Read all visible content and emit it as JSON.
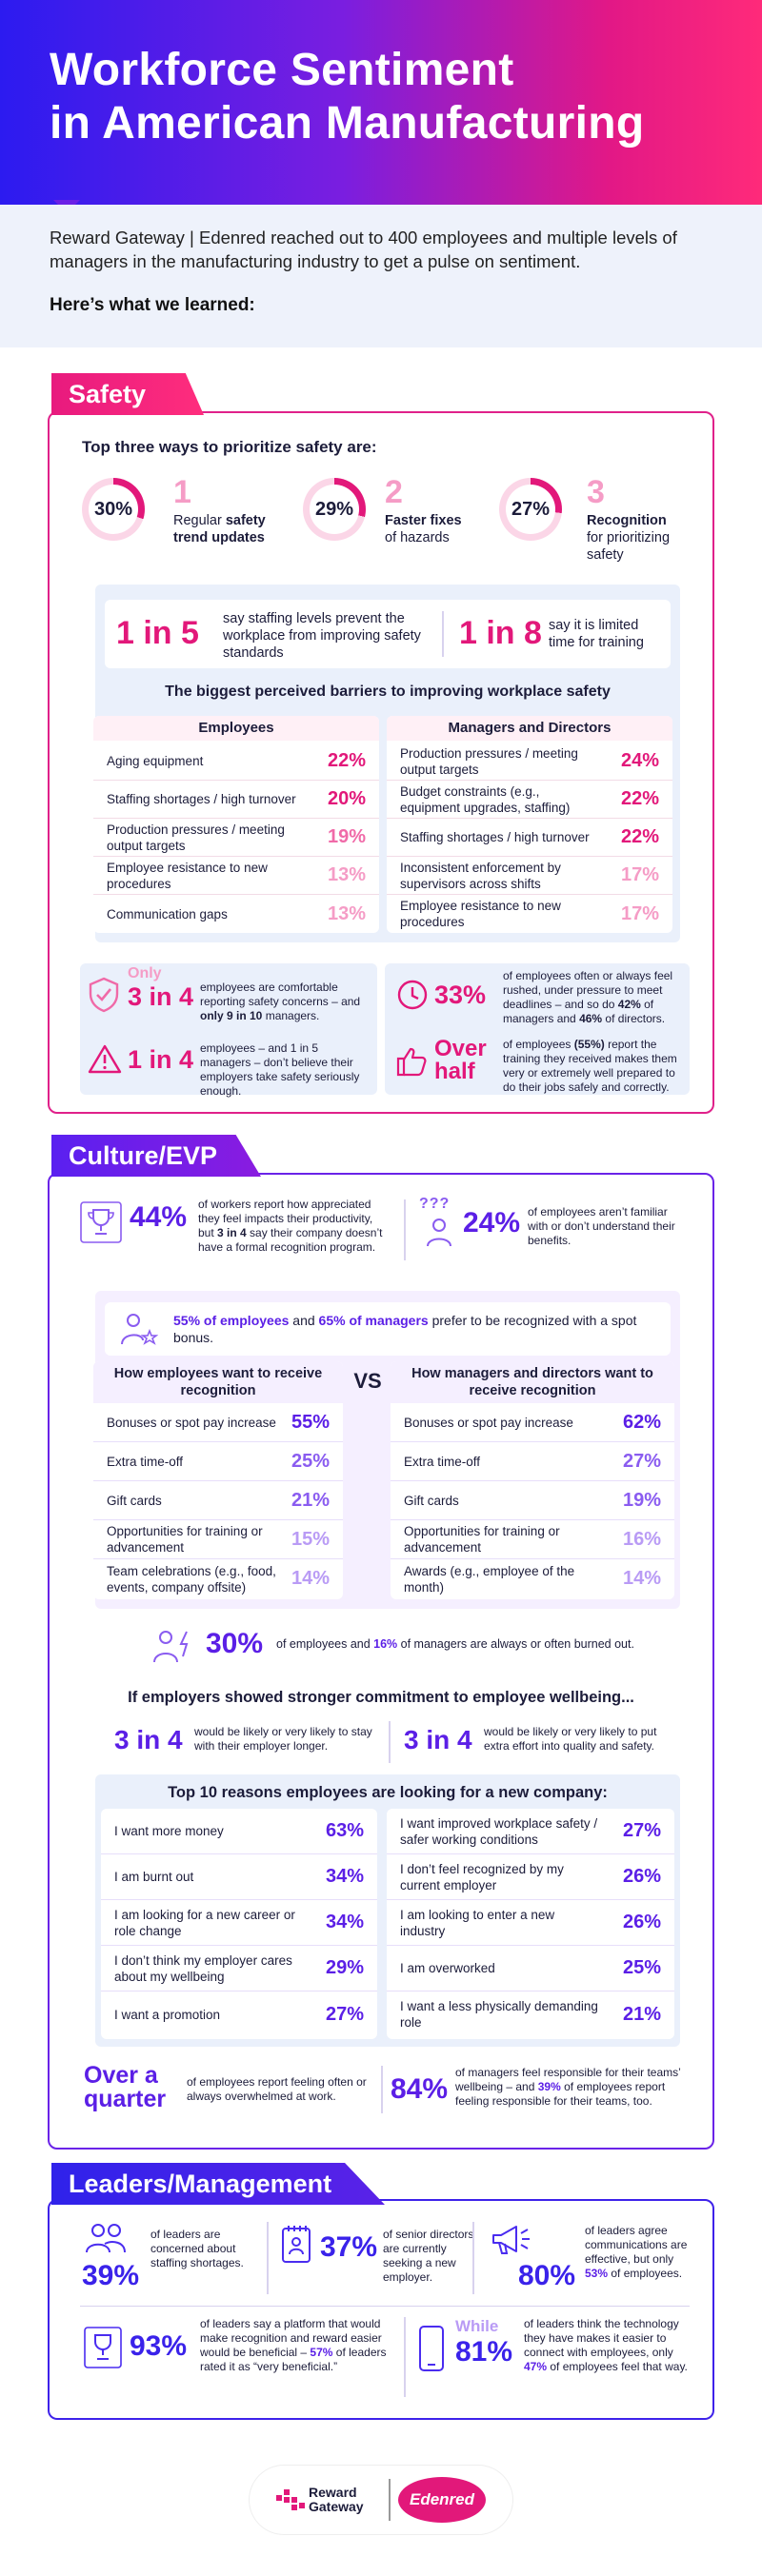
{
  "header": {
    "title_line1": "Workforce Sentiment",
    "title_line2": "in American Manufacturing"
  },
  "intro": {
    "text": "Reward Gateway | Edenred reached out to 400 employees and multiple levels of managers in the manufacturing industry to get a pulse on sentiment.",
    "lead": "Here’s what we learned:"
  },
  "safety": {
    "tag": "Safety",
    "top_heading": "Top three ways to prioritize safety are:",
    "top_ways": [
      {
        "pct": "30%",
        "num": "1",
        "line1": "Regular",
        "bold1": "safety",
        "line2": "trend updates",
        "fraction": 0.3
      },
      {
        "pct": "29%",
        "num": "2",
        "line1": "",
        "bold1": "Faster fixes",
        "line2": "of hazards",
        "fraction": 0.29
      },
      {
        "pct": "27%",
        "num": "3",
        "line1": "",
        "bold1": "Recognition",
        "line2": "for prioritizing safety",
        "fraction": 0.27
      }
    ],
    "stat1": {
      "big": "1 in 5",
      "text": "say staffing levels prevent the workplace from improving safety standards"
    },
    "stat2": {
      "big": "1 in 8",
      "text": "say it is limited time for training"
    },
    "barriers_heading": "The biggest perceived barriers to improving workplace safety",
    "employees_header": "Employees",
    "managers_header": "Managers and Directors",
    "employees": [
      {
        "label": "Aging equipment",
        "value": "22%"
      },
      {
        "label": "Staffing shortages / high turnover",
        "value": "20%"
      },
      {
        "label": "Production pressures / meeting output targets",
        "value": "19%"
      },
      {
        "label": "Employee resistance to new procedures",
        "value": "13%"
      },
      {
        "label": "Communication gaps",
        "value": "13%"
      }
    ],
    "managers": [
      {
        "label": "Production pressures / meeting output targets",
        "value": "24%"
      },
      {
        "label": "Budget constraints (e.g., equipment upgrades, staffing)",
        "value": "22%"
      },
      {
        "label": "Staffing shortages / high turnover",
        "value": "22%"
      },
      {
        "label": "Inconsistent enforcement by supervisors across shifts",
        "value": "17%"
      },
      {
        "label": "Employee resistance to new procedures",
        "value": "17%"
      }
    ],
    "b1": {
      "pre": "Only",
      "big": "3 in 4",
      "text_a": "employees are comfortable reporting safety concerns – and ",
      "bold": "only 9 in 10",
      "text_b": " managers."
    },
    "b2": {
      "big": "1 in 4",
      "text": "employees – and 1 in 5 managers – don’t believe their employers take safety seriously enough."
    },
    "b3": {
      "big": "33%",
      "text_a": "of employees often or always feel rushed, under pressure to meet deadlines – and so do ",
      "bold1": "42%",
      "text_b": " of managers and ",
      "bold2": "46%",
      "text_c": " of directors."
    },
    "b4": {
      "big1": "Over",
      "big2": "half",
      "text_a": "of employees ",
      "bold": "(55%)",
      "text_b": " report the training they received makes them very or extremely well prepared to do their jobs safely and correctly."
    }
  },
  "culture": {
    "tag": "Culture/EVP",
    "s1": {
      "big": "44%",
      "text_a": "of workers report how appreciated they feel impacts their productivity, but ",
      "bold": "3 in 4",
      "text_b": " say their company doesn’t have a formal recognition program."
    },
    "s2": {
      "big": "24%",
      "text": "of employees aren’t familiar with or don’t understand their benefits.",
      "icon_text": "???"
    },
    "pref": {
      "bold1": "55% of employees",
      "mid": " and ",
      "bold2": "65% of managers",
      "rest": " prefer to be recognized with a spot bonus."
    },
    "emp_header": "How employees want to receive recognition",
    "vs": "VS",
    "mgr_header": "How managers and directors want to receive recognition",
    "employees": [
      {
        "label": "Bonuses or spot pay increase",
        "value": "55%"
      },
      {
        "label": "Extra time-off",
        "value": "25%"
      },
      {
        "label": "Gift cards",
        "value": "21%"
      },
      {
        "label": "Opportunities for training or advancement",
        "value": "15%"
      },
      {
        "label": "Team celebrations (e.g., food, events, company offsite)",
        "value": "14%"
      }
    ],
    "managers": [
      {
        "label": "Bonuses or spot pay increase",
        "value": "62%"
      },
      {
        "label": "Extra time-off",
        "value": "27%"
      },
      {
        "label": "Gift cards",
        "value": "19%"
      },
      {
        "label": "Opportunities for training or advancement",
        "value": "16%"
      },
      {
        "label": "Awards (e.g., employee of the month)",
        "value": "14%"
      }
    ],
    "burnout": {
      "big": "30%",
      "text_a": "of employees and ",
      "bold": "16%",
      "text_b": " of managers are always or often burned out."
    },
    "wellbeing_heading": "If employers showed stronger commitment to employee wellbeing...",
    "w1": {
      "big": "3 in 4",
      "text": "would be likely or very likely to stay with their employer longer."
    },
    "w2": {
      "big": "3 in 4",
      "text": "would be likely or very likely to put extra effort into quality and safety."
    },
    "reasons_heading": "Top 10 reasons employees are looking for a new company:",
    "reasons_left": [
      {
        "label": "I want more money",
        "value": "63%"
      },
      {
        "label": "I am burnt out",
        "value": "34%"
      },
      {
        "label": "I am looking for a new career or role change",
        "value": "34%"
      },
      {
        "label": "I don’t think my employer cares about my wellbeing",
        "value": "29%"
      },
      {
        "label": "I want a promotion",
        "value": "27%"
      }
    ],
    "reasons_right": [
      {
        "label": "I want improved workplace safety / safer working conditions",
        "value": "27%"
      },
      {
        "label": "I don’t feel recognized by my current employer",
        "value": "26%"
      },
      {
        "label": "I am looking to enter a new industry",
        "value": "26%"
      },
      {
        "label": "I am overworked",
        "value": "25%"
      },
      {
        "label": "I want a less physically demanding role",
        "value": "21%"
      }
    ],
    "q1": {
      "big1": "Over a",
      "big2": "quarter",
      "text": "of employees report feeling often or always overwhelmed at work."
    },
    "q2": {
      "big": "84%",
      "text_a": "of managers feel responsible for their teams’ wellbeing – and ",
      "bold": "39%",
      "text_b": " of employees report feeling responsible for their teams, too."
    }
  },
  "leaders": {
    "tag": "Leaders/Management",
    "l1": {
      "big": "39%",
      "text": "of leaders are concerned about staffing shortages."
    },
    "l2": {
      "big": "37%",
      "text": "of senior directors are currently seeking a new employer."
    },
    "l3": {
      "big": "80%",
      "text_a": "of leaders agree communications are effective, but only ",
      "bold": "53%",
      "text_b": " of employees."
    },
    "l4": {
      "big": "93%",
      "text_a": "of leaders say a platform that would make recognition and reward easier would be beneficial – ",
      "bold": "57%",
      "text_b": " of leaders rated it as “very beneficial.”"
    },
    "l5": {
      "pre": "While",
      "big": "81%",
      "text_a": "of leaders think the technology they have makes it easier to connect with employees, only ",
      "bold": "47%",
      "text_b": " of employees feel that way."
    }
  },
  "footer": {
    "brand1_line1": "Reward",
    "brand1_line2": "Gateway",
    "brand2": "Edenred"
  },
  "colors": {
    "pink": "#e2187a",
    "purple": "#5b1fe6",
    "blue": "#2c1bf0"
  }
}
